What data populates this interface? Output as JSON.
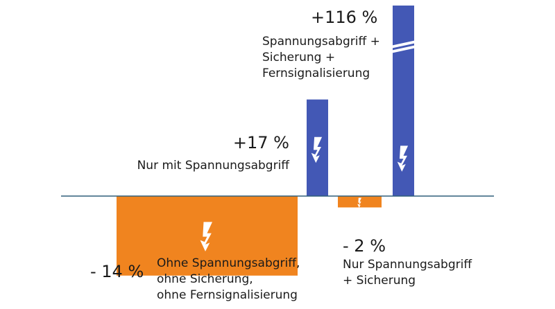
{
  "chart_data": {
    "type": "bar",
    "baseline": 0,
    "axis_break": {
      "bar_index": 3
    },
    "colors": {
      "positive": "#4358b5",
      "negative": "#f0841f",
      "axis": "#2f5f7a",
      "icon": "#ffffff"
    },
    "bars": [
      {
        "value": -14,
        "value_label": "- 14 %",
        "label_lines": [
          "Ohne Spannungsabgriff,",
          "ohne Sicherung,",
          "ohne Fernsignalisierung"
        ],
        "icon": "lightning-bolt-icon"
      },
      {
        "value": 17,
        "value_label": "+17 %",
        "label_lines": [
          "Nur mit Spannungsabgriff"
        ],
        "icon": "lightning-bolt-icon"
      },
      {
        "value": -2,
        "value_label": "- 2 %",
        "label_lines": [
          "Nur Spannungsabgriff",
          "+ Sicherung"
        ],
        "icon": "lightning-bolt-icon"
      },
      {
        "value": 116,
        "value_label": "+116 %",
        "label_lines": [
          "Spannungsabgriff +",
          "Sicherung +",
          "Fernsignalisierung"
        ],
        "icon": "lightning-bolt-icon"
      }
    ]
  }
}
